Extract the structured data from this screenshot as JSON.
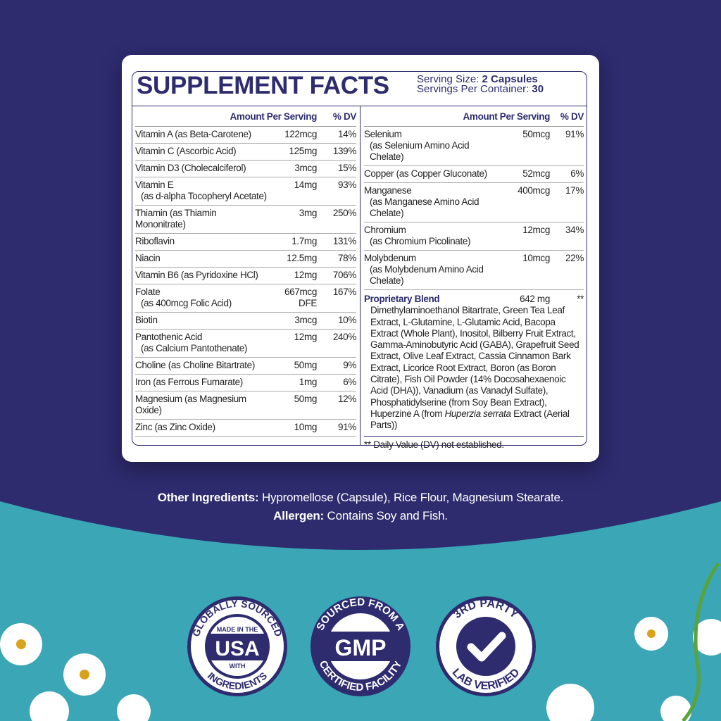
{
  "title": "SUPPLEMENT FACTS",
  "serving": {
    "size_label": "Serving Size: ",
    "size_value": "2 Capsules",
    "per_label": "Servings Per Container: ",
    "per_value": "30"
  },
  "header": {
    "amount": "Amount Per Serving",
    "dv": "% DV"
  },
  "left": [
    {
      "name": "Vitamin A (as Beta-Carotene)",
      "amount": "122mcg",
      "dv": "14%"
    },
    {
      "name": "Vitamin C (Ascorbic Acid)",
      "amount": "125mg",
      "dv": "139%"
    },
    {
      "name": "Vitamin D3 (Cholecalciferol)",
      "amount": "3mcg",
      "dv": "15%"
    },
    {
      "name": "Vitamin E",
      "sub": "(as d-alpha Tocopheryl Acetate)",
      "amount": "14mg",
      "dv": "93%"
    },
    {
      "name": "Thiamin (as Thiamin Mononitrate)",
      "amount": "3mg",
      "dv": "250%"
    },
    {
      "name": "Riboflavin",
      "amount": "1.7mg",
      "dv": "131%"
    },
    {
      "name": "Niacin",
      "amount": "12.5mg",
      "dv": "78%"
    },
    {
      "name": "Vitamin B6 (as Pyridoxine HCl)",
      "amount": "12mg",
      "dv": "706%"
    },
    {
      "name": "Folate",
      "sub": "(as 400mcg Folic Acid)",
      "amount": "667mcg DFE",
      "dv": "167%"
    },
    {
      "name": "Biotin",
      "amount": "3mcg",
      "dv": "10%"
    },
    {
      "name": "Pantothenic Acid",
      "sub": "(as Calcium Pantothenate)",
      "amount": "12mg",
      "dv": "240%"
    },
    {
      "name": "Choline (as Choline Bitartrate)",
      "amount": "50mg",
      "dv": "9%"
    },
    {
      "name": "Iron (as Ferrous Fumarate)",
      "amount": "1mg",
      "dv": "6%"
    },
    {
      "name": "Magnesium (as Magnesium Oxide)",
      "amount": "50mg",
      "dv": "12%"
    },
    {
      "name": "Zinc (as Zinc Oxide)",
      "amount": "10mg",
      "dv": "91%"
    }
  ],
  "right": [
    {
      "name": "Selenium",
      "sub": "(as Selenium Amino Acid Chelate)",
      "amount": "50mcg",
      "dv": "91%"
    },
    {
      "name": "Copper (as Copper Gluconate)",
      "amount": "52mcg",
      "dv": "6%"
    },
    {
      "name": "Manganese",
      "sub": "(as Manganese Amino Acid Chelate)",
      "amount": "400mcg",
      "dv": "17%"
    },
    {
      "name": "Chromium",
      "sub": "(as Chromium Picolinate)",
      "amount": "12mcg",
      "dv": "34%"
    },
    {
      "name": "Molybdenum",
      "sub": "(as Molybdenum Amino Acid Chelate)",
      "amount": "10mcg",
      "dv": "22%"
    }
  ],
  "blend": {
    "name": "Proprietary Blend",
    "amount": "642 mg",
    "dv": "**",
    "text": "Dimethylaminoethanol Bitartrate, Green Tea Leaf Extract, L-Glutamine, L-Glutamic Acid, Bacopa Extract (Whole Plant), Inositol, Bilberry Fruit Extract, Gamma-Aminobutyric Acid (GABA), Grapefruit Seed Extract, Olive Leaf Extract, Cassia Cinnamon Bark Extract, Licorice Root Extract, Boron (as Boron Citrate), Fish Oil Powder (14% Docosahexaenoic Acid (DHA)), Vanadium (as Vanadyl Sulfate), Phosphatidylserine (from Soy Bean Extract), Huperzine A (from ",
    "italic": "Huperzia serrata",
    "text_end": " Extract (Aerial Parts))"
  },
  "footnote": "** Daily Value (DV) not established.",
  "other": {
    "label": "Other Ingredients:",
    "value": " Hypromellose (Capsule), Rice Flour, Magnesium Stearate.",
    "allergen_label": "Allergen:",
    "allergen_value": " Contains Soy and Fish."
  },
  "badges": [
    {
      "top": "GLOBALLY SOURCED",
      "inner_top": "MADE IN THE",
      "main": "USA",
      "inner_bottom": "WITH",
      "bottom": "INGREDIENTS"
    },
    {
      "top": "SOURCED FROM A",
      "main": "GMP",
      "bottom": "CERTIFIED FACILITY"
    },
    {
      "top": "3RD PARTY",
      "main": "check-icon",
      "bottom": "LAB VERIFIED"
    }
  ],
  "colors": {
    "navy": "#2e2b6f",
    "teal": "#3aa6b6",
    "white": "#ffffff"
  }
}
